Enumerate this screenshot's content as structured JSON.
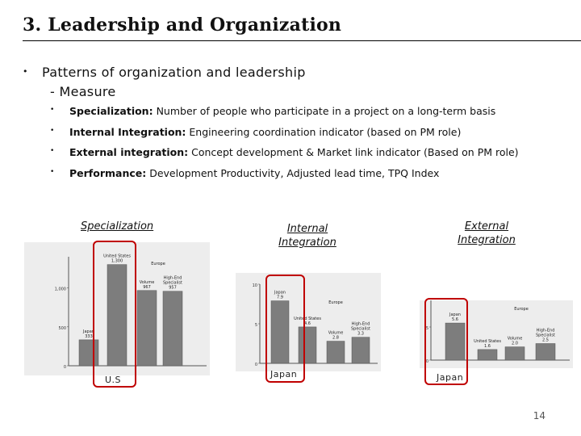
{
  "title": "3. Leadership and Organization",
  "main_bullet": "Patterns of organization and leadership",
  "sub_heading": "- Measure",
  "items": [
    {
      "label": "Specialization:",
      "text": " Number of people who participate in a project on a long-term basis"
    },
    {
      "label": "Internal Integration:",
      "text": " Engineering coordination indicator (based on PM role)"
    },
    {
      "label": "External integration:",
      "text": " Concept development & Market link indicator (Based on PM role)"
    },
    {
      "label": "Performance:",
      "text": " Development Productivity, Adjusted lead time, TPQ Index"
    }
  ],
  "figures": {
    "specialization": {
      "label": "Specialization",
      "bottom": "U.S",
      "chart_data": {
        "type": "bar",
        "categories": [
          "Japan",
          "United States",
          "Volume",
          "High-End Specialist"
        ],
        "values": [
          333,
          1300,
          967,
          957
        ],
        "bar_labels": [
          [
            "Japan",
            "333"
          ],
          [
            "United States",
            "1,300"
          ],
          [
            "Volume",
            "967"
          ],
          [
            "High-End",
            "Specialist",
            "957"
          ]
        ],
        "group_label": "Europe",
        "yticks": [
          "1,000",
          "500",
          "0"
        ],
        "ylim": [
          0,
          1400
        ],
        "highlight": "United States"
      }
    },
    "internal": {
      "label_lines": [
        "Internal",
        "Integration"
      ],
      "bottom": "Japan",
      "chart_data": {
        "type": "bar",
        "categories": [
          "Japan",
          "United States",
          "Volume",
          "High-End Specialist"
        ],
        "values": [
          7.9,
          4.6,
          2.8,
          3.3
        ],
        "bar_labels": [
          [
            "Japan",
            "7.9"
          ],
          [
            "United States",
            "4.6"
          ],
          [
            "Volume",
            "2.8"
          ],
          [
            "High-End",
            "Specialist",
            "3.3"
          ]
        ],
        "group_label": "Europe",
        "yticks": [
          "10",
          "5",
          "0"
        ],
        "ylim": [
          0,
          10
        ],
        "highlight": "Japan"
      }
    },
    "external": {
      "label_lines": [
        "External",
        "Integration"
      ],
      "bottom": "Japan",
      "chart_data": {
        "type": "bar",
        "categories": [
          "Japan",
          "United States",
          "Volume",
          "High-End Specialist"
        ],
        "values": [
          5.6,
          1.6,
          2.0,
          2.5
        ],
        "bar_labels": [
          [
            "Japan",
            "5.6"
          ],
          [
            "United States",
            "1.6"
          ],
          [
            "Volume",
            "2.0"
          ],
          [
            "High-End",
            "Specialist",
            "2.5"
          ]
        ],
        "group_label": "Europe",
        "yticks": [
          "5",
          "0"
        ],
        "ylim": [
          0,
          10
        ],
        "highlight": "Japan"
      }
    }
  },
  "page_number": "14"
}
